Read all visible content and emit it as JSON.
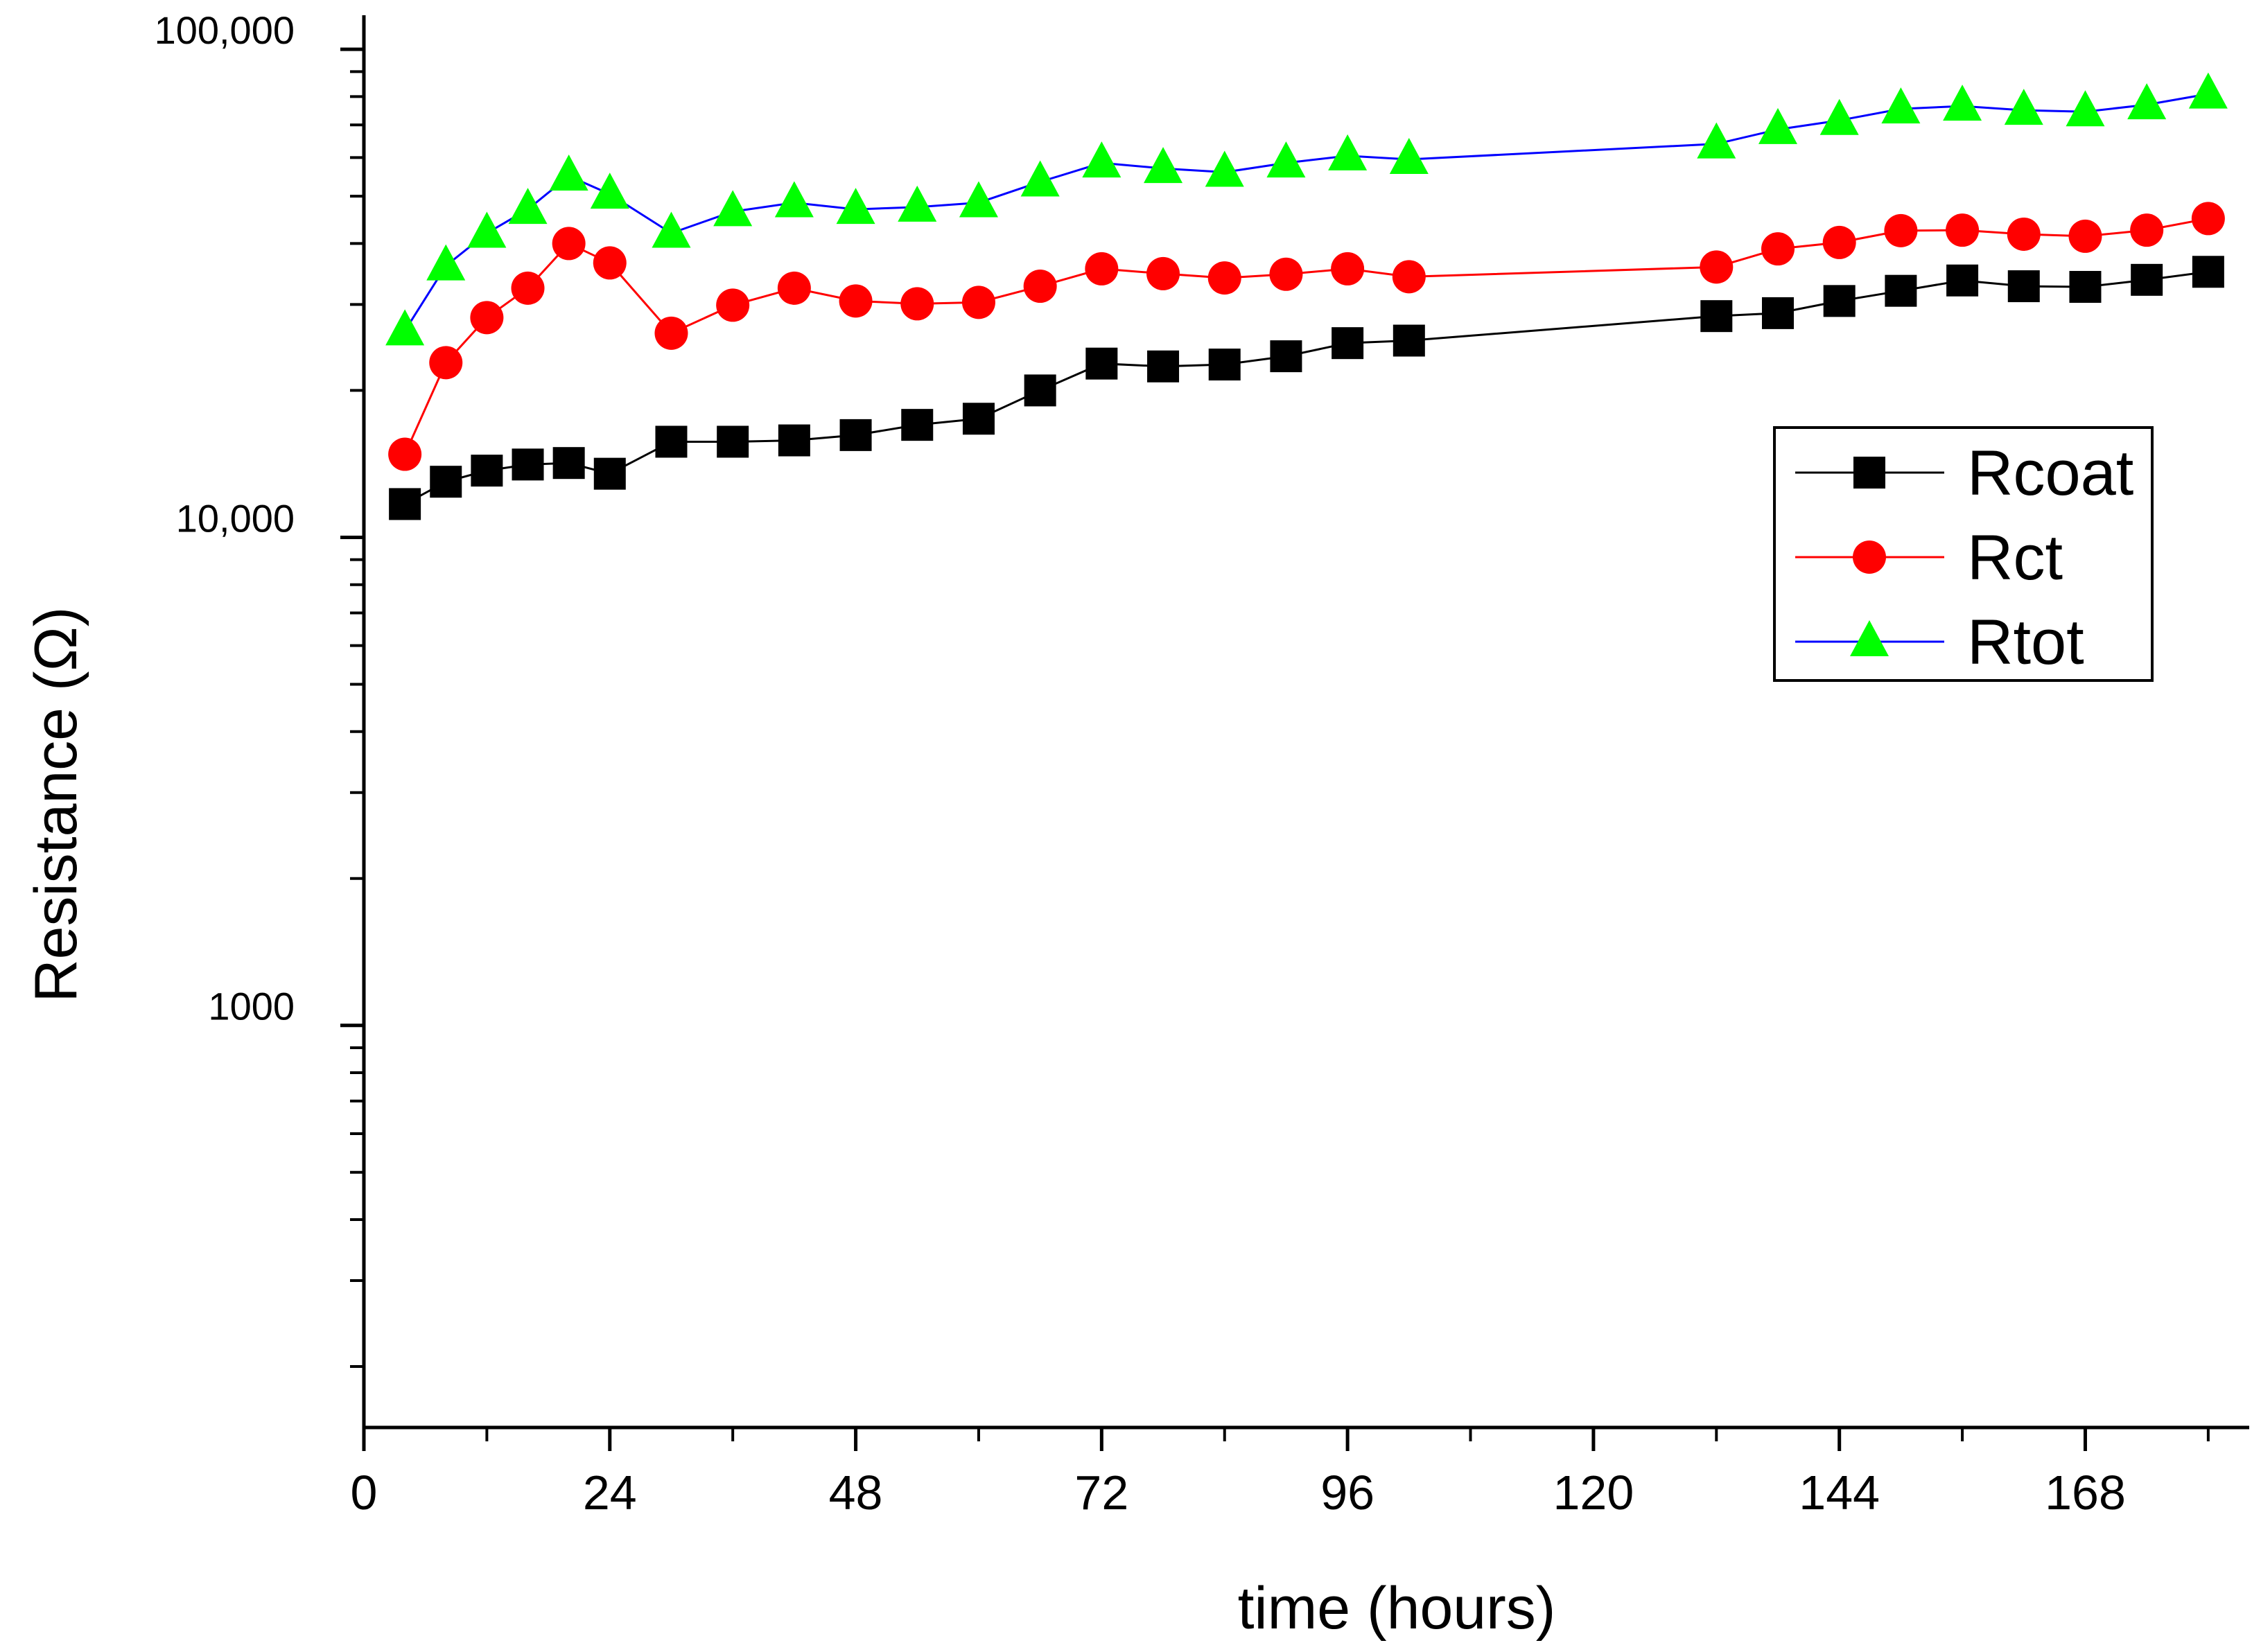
{
  "chart_data": {
    "type": "line",
    "title": "",
    "xlabel": "time (hours)",
    "ylabel": "Resistance (Ω)",
    "xlim": [
      0,
      184
    ],
    "ylim": [
      150,
      110000
    ],
    "yscale": "log",
    "x_ticks": [
      0,
      24,
      48,
      72,
      96,
      120,
      144,
      168
    ],
    "x_tick_labels": [
      "0",
      "24",
      "48",
      "72",
      "96",
      "120",
      "144",
      "168"
    ],
    "y_ticks": [
      1000,
      10000,
      100000
    ],
    "y_tick_labels": [
      "1000",
      "10,000",
      "100,000"
    ],
    "legend_position": "right",
    "grid": false,
    "series": [
      {
        "name": "Rcoat",
        "color": "#000000",
        "marker": "square",
        "x": [
          4,
          8,
          12,
          16,
          20,
          24,
          30,
          36,
          42,
          48,
          54,
          60,
          66,
          72,
          78,
          84,
          90,
          96,
          102,
          132,
          138,
          144,
          150,
          156,
          162,
          168,
          174,
          180
        ],
        "values": [
          11700,
          13000,
          13700,
          14100,
          14200,
          13500,
          15700,
          15700,
          15800,
          16200,
          17000,
          17500,
          20000,
          22700,
          22400,
          22600,
          23500,
          25000,
          25300,
          28400,
          28800,
          30500,
          32000,
          33600,
          32700,
          32600,
          33700,
          35000
        ]
      },
      {
        "name": "Rct",
        "color": "#ff0000",
        "marker": "circle",
        "x": [
          4,
          8,
          12,
          16,
          20,
          24,
          30,
          36,
          42,
          48,
          54,
          60,
          66,
          72,
          78,
          84,
          90,
          96,
          102,
          132,
          138,
          144,
          150,
          156,
          162,
          168,
          174,
          180
        ],
        "values": [
          14800,
          22800,
          28200,
          32400,
          40000,
          36500,
          26200,
          29900,
          32400,
          30500,
          30100,
          30300,
          32700,
          35500,
          34700,
          34000,
          34600,
          35500,
          34200,
          35800,
          39000,
          40200,
          42500,
          42600,
          41800,
          41400,
          42600,
          45000
        ]
      },
      {
        "name": "Rtot",
        "color": "#0000ff",
        "marker": "triangle",
        "marker_color": "#00ff00",
        "x": [
          4,
          8,
          12,
          16,
          20,
          24,
          30,
          36,
          42,
          48,
          54,
          60,
          66,
          72,
          78,
          84,
          90,
          96,
          102,
          132,
          138,
          144,
          150,
          156,
          162,
          168,
          174,
          180
        ],
        "values": [
          26500,
          36000,
          42000,
          47000,
          55000,
          50500,
          42000,
          46500,
          48500,
          47000,
          47500,
          48500,
          53500,
          58500,
          57000,
          56000,
          58500,
          60500,
          59500,
          64000,
          68500,
          71500,
          75500,
          76500,
          75000,
          74500,
          77000,
          81000
        ]
      }
    ]
  }
}
